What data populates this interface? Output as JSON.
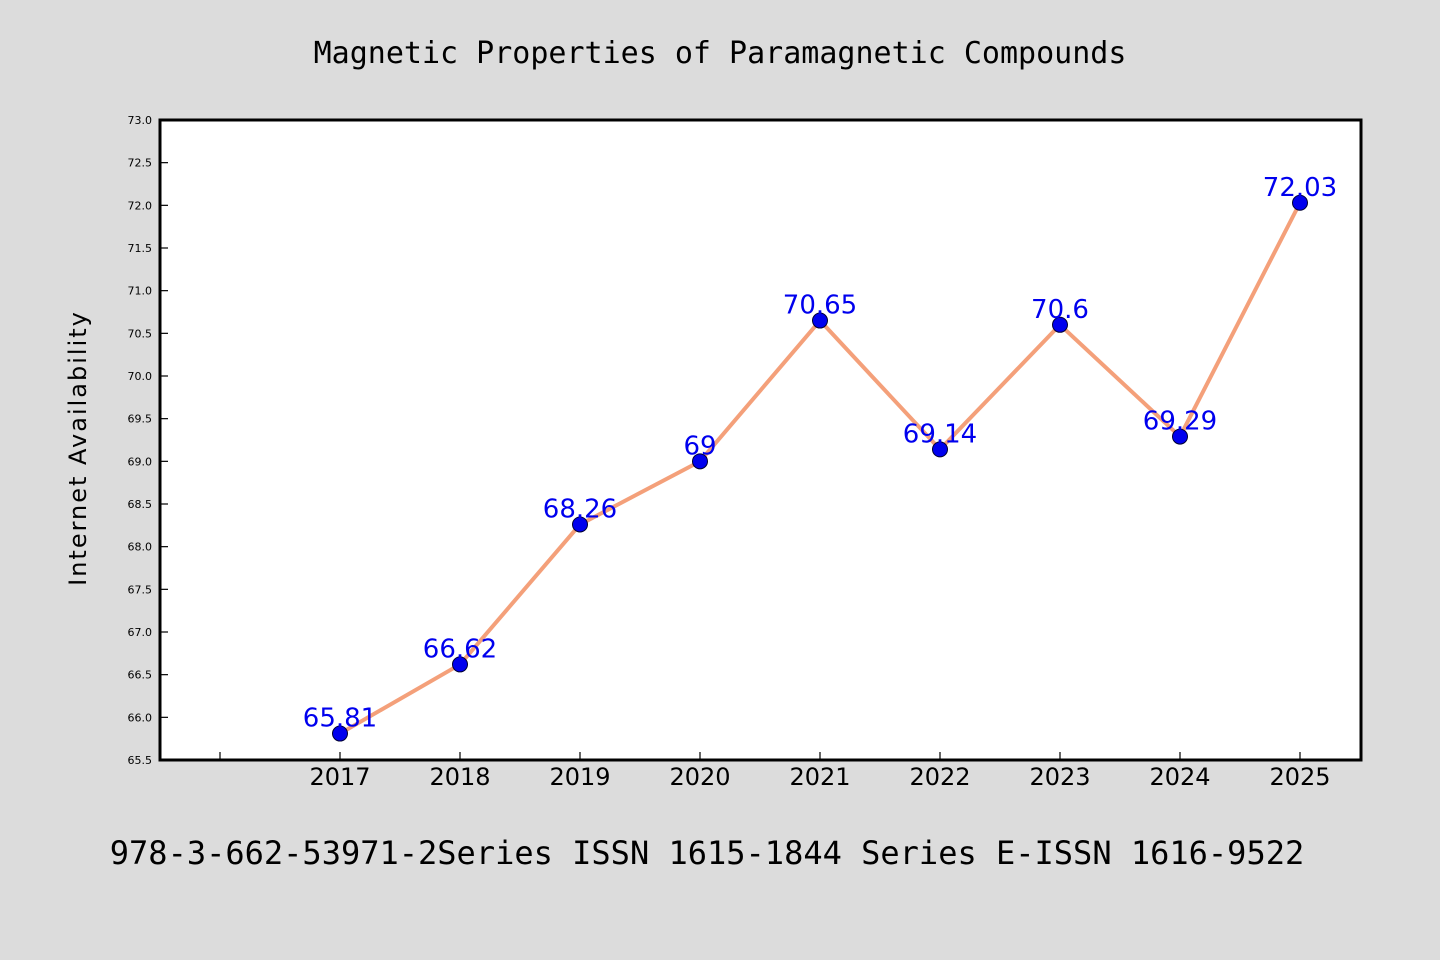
{
  "chart_data": {
    "type": "line",
    "title": "Magnetic Properties of Paramagnetic Compounds",
    "xlabel": "",
    "ylabel": "Internet Availability",
    "x": [
      "2017",
      "2018",
      "2019",
      "2020",
      "2021",
      "2022",
      "2023",
      "2024",
      "2025"
    ],
    "series": [
      {
        "values": [
          65.81,
          66.62,
          68.26,
          69,
          70.65,
          69.14,
          70.6,
          69.29,
          72.03
        ],
        "data_labels": [
          "65.81",
          "66.62",
          "68.26",
          "69",
          "70.65",
          "69.14",
          "70.6",
          "69.29",
          "72.03"
        ],
        "line_color": "#f4a07a",
        "marker_color": "#0000ee",
        "label_color": "#0000ee"
      }
    ],
    "ylim": [
      65.5,
      73.0
    ],
    "yticks": [
      "65.5",
      "66.0",
      "66.5",
      "67.0",
      "67.5",
      "68.0",
      "68.5",
      "69.0",
      "69.5",
      "70.0",
      "70.5",
      "71.0",
      "71.5",
      "72.0",
      "72.5",
      "73.0"
    ],
    "grid": false,
    "legend": "none"
  },
  "footer": "978-3-662-53971-2Series ISSN 1615-1844 Series E-ISSN 1616-9522",
  "colors": {
    "background": "#dcdcdc",
    "plot_background": "#ffffff",
    "axis": "#000000"
  }
}
